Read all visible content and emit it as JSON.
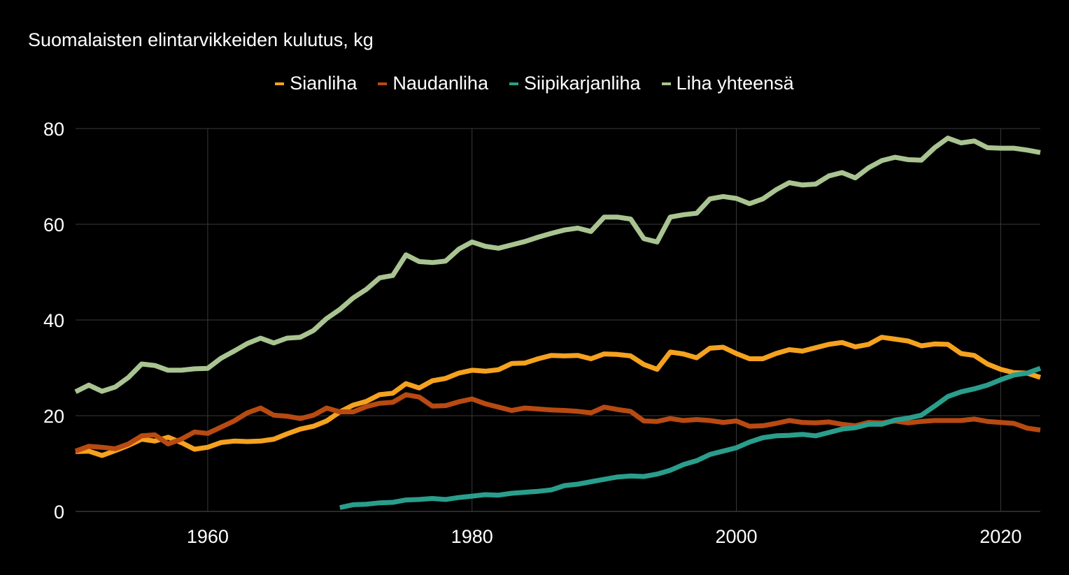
{
  "colors": {
    "background": "#000000",
    "gridline": "#3a3a3a",
    "text": "#ffffff"
  },
  "chart_data": {
    "type": "line",
    "title": "Suomalaisten elintarvikkeiden kulutus, kg",
    "xlabel": "",
    "ylabel": "",
    "xlim": [
      1950,
      2023
    ],
    "ylim": [
      0,
      80
    ],
    "x_ticks": [
      1960,
      1980,
      2000,
      2020
    ],
    "y_ticks": [
      0,
      20,
      40,
      60,
      80
    ],
    "grid": true,
    "legend_position": "top-center",
    "series": [
      {
        "name": "Sianliha",
        "color": "#f5a21f",
        "x": [
          1950,
          1951,
          1952,
          1953,
          1954,
          1955,
          1956,
          1957,
          1958,
          1959,
          1960,
          1961,
          1962,
          1963,
          1964,
          1965,
          1966,
          1967,
          1968,
          1969,
          1970,
          1971,
          1972,
          1973,
          1974,
          1975,
          1976,
          1977,
          1978,
          1979,
          1980,
          1981,
          1982,
          1983,
          1984,
          1985,
          1986,
          1987,
          1988,
          1989,
          1990,
          1991,
          1992,
          1993,
          1994,
          1995,
          1996,
          1997,
          1998,
          1999,
          2000,
          2001,
          2002,
          2003,
          2004,
          2005,
          2006,
          2007,
          2008,
          2009,
          2010,
          2011,
          2012,
          2013,
          2014,
          2015,
          2016,
          2017,
          2018,
          2019,
          2020,
          2021,
          2022,
          2023
        ],
        "values": [
          12.5,
          12.6,
          11.7,
          12.7,
          13.8,
          15.1,
          14.7,
          15.5,
          14.4,
          13.0,
          13.4,
          14.4,
          14.7,
          14.6,
          14.7,
          15.1,
          16.2,
          17.2,
          17.8,
          18.9,
          20.8,
          22.2,
          23.0,
          24.4,
          24.7,
          26.7,
          25.8,
          27.3,
          27.8,
          28.9,
          29.5,
          29.3,
          29.6,
          30.9,
          31.0,
          31.9,
          32.6,
          32.5,
          32.6,
          31.9,
          32.9,
          32.8,
          32.5,
          30.7,
          29.7,
          33.3,
          32.9,
          32.1,
          34.1,
          34.3,
          33.0,
          31.9,
          31.9,
          33.0,
          33.8,
          33.5,
          34.2,
          34.9,
          35.3,
          34.4,
          34.9,
          36.4,
          36.0,
          35.6,
          34.6,
          35.0,
          34.9,
          33.0,
          32.6,
          30.8,
          29.7,
          29.0,
          28.9,
          28.0
        ]
      },
      {
        "name": "Naudanliha",
        "color": "#b84a12",
        "x": [
          1950,
          1951,
          1952,
          1953,
          1954,
          1955,
          1956,
          1957,
          1958,
          1959,
          1960,
          1961,
          1962,
          1963,
          1964,
          1965,
          1966,
          1967,
          1968,
          1969,
          1970,
          1971,
          1972,
          1973,
          1974,
          1975,
          1976,
          1977,
          1978,
          1979,
          1980,
          1981,
          1982,
          1983,
          1984,
          1985,
          1986,
          1987,
          1988,
          1989,
          1990,
          1991,
          1992,
          1993,
          1994,
          1995,
          1996,
          1997,
          1998,
          1999,
          2000,
          2001,
          2002,
          2003,
          2004,
          2005,
          2006,
          2007,
          2008,
          2009,
          2010,
          2011,
          2012,
          2013,
          2014,
          2015,
          2016,
          2017,
          2018,
          2019,
          2020,
          2021,
          2022,
          2023
        ],
        "values": [
          12.6,
          13.6,
          13.4,
          13.1,
          14.1,
          15.8,
          16.0,
          14.1,
          15.1,
          16.6,
          16.3,
          17.6,
          18.9,
          20.6,
          21.6,
          20.1,
          19.9,
          19.4,
          20.1,
          21.6,
          20.8,
          20.8,
          21.9,
          22.6,
          22.8,
          24.4,
          23.9,
          22.0,
          22.1,
          22.9,
          23.5,
          22.5,
          21.8,
          21.1,
          21.6,
          21.4,
          21.2,
          21.1,
          20.9,
          20.6,
          21.8,
          21.3,
          20.9,
          18.9,
          18.8,
          19.4,
          19.0,
          19.2,
          19.0,
          18.6,
          18.9,
          17.8,
          17.9,
          18.4,
          19.0,
          18.6,
          18.5,
          18.7,
          18.2,
          17.9,
          18.6,
          18.5,
          18.9,
          18.5,
          18.8,
          19.0,
          19.0,
          19.0,
          19.3,
          18.8,
          18.6,
          18.4,
          17.4,
          17.0
        ]
      },
      {
        "name": "Siipikarjanliha",
        "color": "#2a9e8c",
        "x": [
          1970,
          1971,
          1972,
          1973,
          1974,
          1975,
          1976,
          1977,
          1978,
          1979,
          1980,
          1981,
          1982,
          1983,
          1984,
          1985,
          1986,
          1987,
          1988,
          1989,
          1990,
          1991,
          1992,
          1993,
          1994,
          1995,
          1996,
          1997,
          1998,
          1999,
          2000,
          2001,
          2002,
          2003,
          2004,
          2005,
          2006,
          2007,
          2008,
          2009,
          2010,
          2011,
          2012,
          2013,
          2014,
          2015,
          2016,
          2017,
          2018,
          2019,
          2020,
          2021,
          2022,
          2023
        ],
        "values": [
          0.8,
          1.4,
          1.5,
          1.8,
          1.9,
          2.4,
          2.5,
          2.7,
          2.5,
          2.9,
          3.2,
          3.5,
          3.4,
          3.8,
          4.0,
          4.2,
          4.5,
          5.4,
          5.7,
          6.2,
          6.7,
          7.2,
          7.4,
          7.3,
          7.8,
          8.6,
          9.8,
          10.6,
          11.9,
          12.6,
          13.3,
          14.5,
          15.4,
          15.8,
          15.9,
          16.1,
          15.8,
          16.5,
          17.2,
          17.5,
          18.2,
          18.2,
          19.1,
          19.5,
          20.1,
          22.0,
          24.0,
          25.0,
          25.6,
          26.4,
          27.5,
          28.5,
          28.9,
          29.9
        ]
      },
      {
        "name": "Liha yhteensä",
        "color": "#a9c491",
        "x": [
          1950,
          1951,
          1952,
          1953,
          1954,
          1955,
          1956,
          1957,
          1958,
          1959,
          1960,
          1961,
          1962,
          1963,
          1964,
          1965,
          1966,
          1967,
          1968,
          1969,
          1970,
          1971,
          1972,
          1973,
          1974,
          1975,
          1976,
          1977,
          1978,
          1979,
          1980,
          1981,
          1982,
          1983,
          1984,
          1985,
          1986,
          1987,
          1988,
          1989,
          1990,
          1991,
          1992,
          1993,
          1994,
          1995,
          1996,
          1997,
          1998,
          1999,
          2000,
          2001,
          2002,
          2003,
          2004,
          2005,
          2006,
          2007,
          2008,
          2009,
          2010,
          2011,
          2012,
          2013,
          2014,
          2015,
          2016,
          2017,
          2018,
          2019,
          2020,
          2021,
          2022,
          2023
        ],
        "values": [
          25.0,
          26.4,
          25.1,
          26.0,
          28.0,
          30.8,
          30.5,
          29.5,
          29.5,
          29.8,
          29.9,
          32.0,
          33.5,
          35.1,
          36.2,
          35.2,
          36.2,
          36.4,
          37.8,
          40.3,
          42.2,
          44.6,
          46.4,
          48.8,
          49.3,
          53.6,
          52.2,
          52.0,
          52.3,
          54.8,
          56.3,
          55.4,
          55.0,
          55.7,
          56.4,
          57.3,
          58.1,
          58.8,
          59.2,
          58.5,
          61.5,
          61.5,
          61.1,
          57.0,
          56.3,
          61.5,
          62.0,
          62.3,
          65.3,
          65.8,
          65.4,
          64.3,
          65.3,
          67.2,
          68.7,
          68.2,
          68.4,
          70.1,
          70.8,
          69.7,
          71.8,
          73.3,
          74.0,
          73.5,
          73.4,
          76.0,
          78.0,
          77.0,
          77.4,
          76.0,
          75.9,
          75.9,
          75.5,
          75.0
        ]
      }
    ]
  }
}
